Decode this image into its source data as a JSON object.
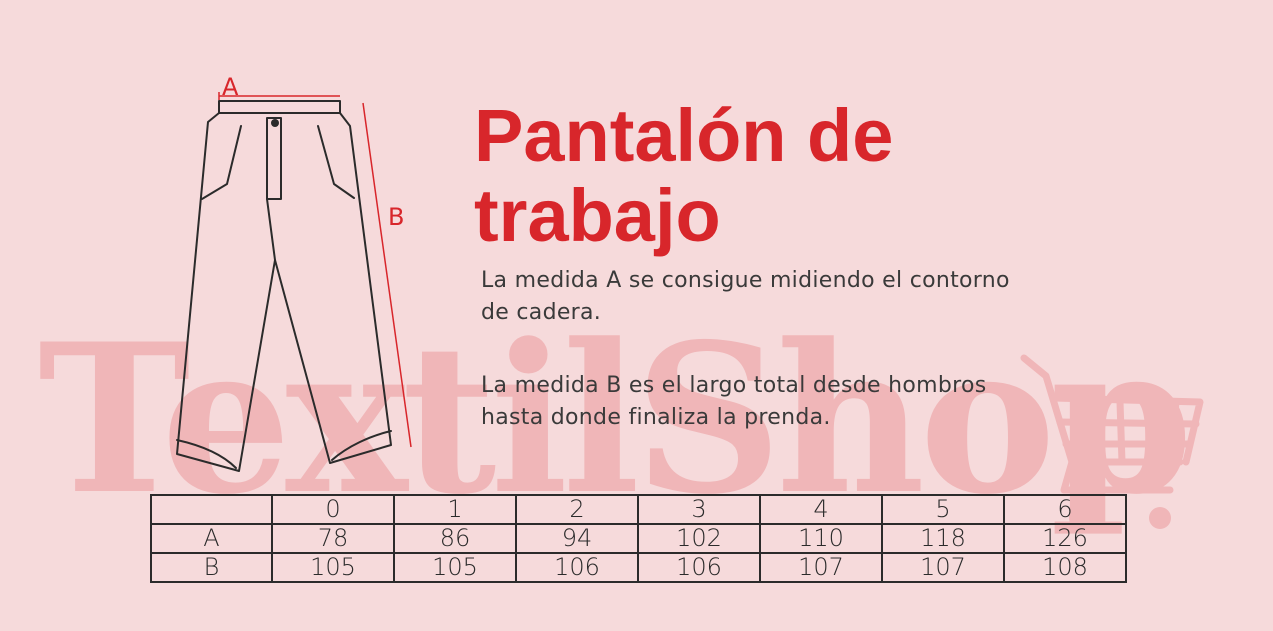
{
  "watermark": "TextilShop",
  "title": {
    "line1": "Pantalón de",
    "line2": "trabajo"
  },
  "description": {
    "a_line1": "La medida A se consigue midiendo el contorno",
    "a_line2": "de cadera.",
    "b_line1": "La medida B es el largo total desde hombros",
    "b_line2": "hasta donde finaliza la prenda."
  },
  "diagram": {
    "label_a": "A",
    "label_b": "B"
  },
  "colors": {
    "accent": "#d8262b",
    "background": "#f6dadb",
    "watermark": "#f0b6b8"
  },
  "table": {
    "sizes": [
      "0",
      "1",
      "2",
      "3",
      "4",
      "5",
      "6"
    ],
    "rows": [
      {
        "label": "A",
        "values": [
          "78",
          "86",
          "94",
          "102",
          "110",
          "118",
          "126"
        ]
      },
      {
        "label": "B",
        "values": [
          "105",
          "105",
          "106",
          "106",
          "107",
          "107",
          "108"
        ]
      }
    ]
  }
}
